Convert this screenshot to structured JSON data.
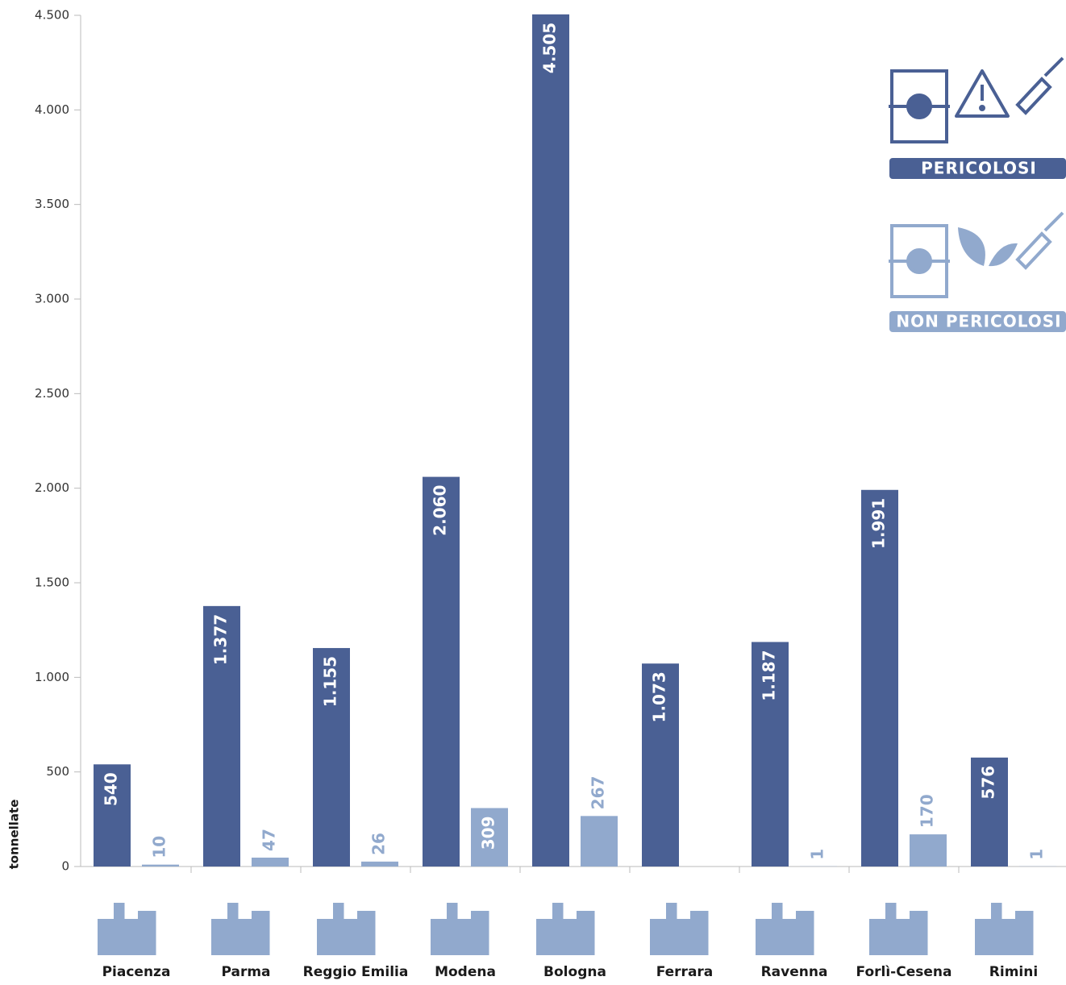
{
  "chart_data": {
    "type": "bar",
    "y_label": "tonnellate",
    "categories": [
      "Piacenza",
      "Parma",
      "Reggio Emilia",
      "Modena",
      "Bologna",
      "Ferrara",
      "Ravenna",
      "Forlì-Cesena",
      "Rimini"
    ],
    "series": [
      {
        "name": "PERICOLOSI",
        "color": "#4a6094",
        "values": [
          540,
          1377,
          1155,
          2060,
          4505,
          1073,
          1187,
          1991,
          576
        ],
        "value_labels": [
          "540",
          "1.377",
          "1.155",
          "2.060",
          "4.505",
          "1.073",
          "1.187",
          "1.991",
          "576"
        ]
      },
      {
        "name": "NON PERICOLOSI",
        "color": "#91a9cd",
        "values": [
          10,
          47,
          26,
          309,
          267,
          null,
          1,
          170,
          1
        ],
        "value_labels": [
          "10",
          "47",
          "26",
          "309",
          "267",
          null,
          "1",
          "170",
          "1"
        ]
      }
    ],
    "ylim": [
      0,
      4500
    ],
    "yticks": [
      0,
      500,
      {
        "value": 1000,
        "label": "1.000"
      },
      {
        "value": 1500,
        "label": "1.500"
      },
      {
        "value": 2000,
        "label": "2.000"
      },
      {
        "value": 2500,
        "label": "2.500"
      },
      {
        "value": 3000,
        "label": "3.000"
      },
      {
        "value": 3500,
        "label": "3.500"
      },
      {
        "value": 4000,
        "label": "4.000"
      },
      {
        "value": 4500,
        "label": "4.500"
      }
    ]
  }
}
